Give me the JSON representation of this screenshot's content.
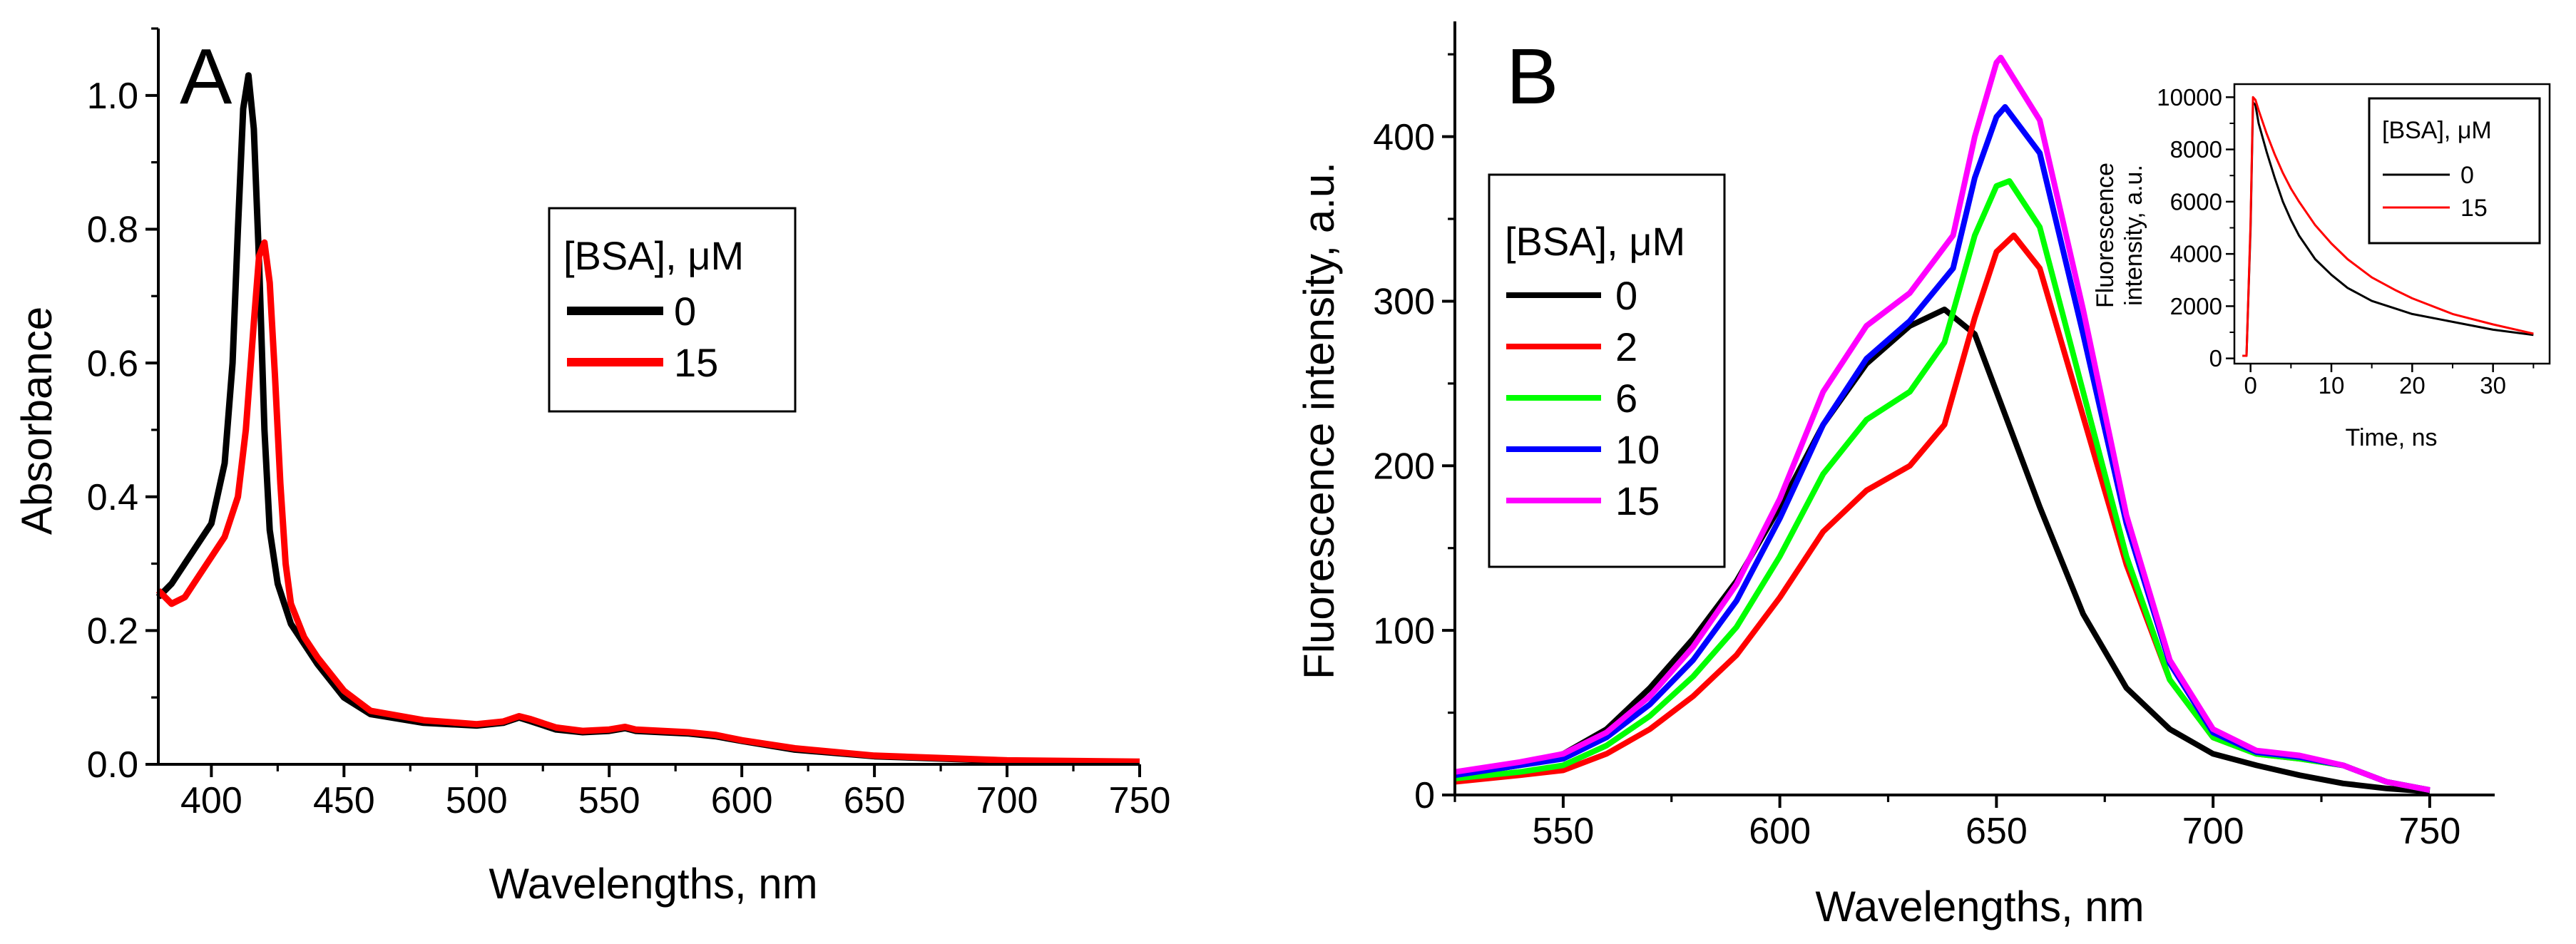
{
  "chart_data": [
    {
      "panel": "A",
      "type": "line",
      "xlabel": "Wavelengths, nm",
      "ylabel": "Absorbance",
      "xlim": [
        380,
        750
      ],
      "ylim": [
        0,
        1.1
      ],
      "xticks": [
        400,
        450,
        500,
        550,
        600,
        650,
        700,
        750
      ],
      "xtick_labels": [
        "400",
        "450",
        "500",
        "550",
        "600",
        "650",
        "700",
        "750"
      ],
      "yticks": [
        0,
        0.2,
        0.4,
        0.6,
        0.8,
        1.0
      ],
      "ytick_labels": [
        "0.0",
        "0.2",
        "0.4",
        "0.6",
        "0.8",
        "1.0"
      ],
      "legend": {
        "title": "[BSA], μM",
        "position": "upper-right"
      },
      "series": [
        {
          "name": "0",
          "color": "#000000",
          "x": [
            380,
            385,
            390,
            395,
            400,
            405,
            408,
            410,
            412,
            414,
            416,
            418,
            420,
            422,
            425,
            430,
            435,
            440,
            450,
            460,
            480,
            500,
            510,
            516,
            520,
            530,
            540,
            550,
            556,
            560,
            570,
            580,
            590,
            600,
            620,
            650,
            700,
            750
          ],
          "y": [
            0.25,
            0.27,
            0.3,
            0.33,
            0.36,
            0.45,
            0.6,
            0.8,
            0.98,
            1.03,
            0.95,
            0.75,
            0.5,
            0.35,
            0.27,
            0.21,
            0.18,
            0.15,
            0.1,
            0.075,
            0.062,
            0.058,
            0.062,
            0.07,
            0.065,
            0.052,
            0.048,
            0.05,
            0.054,
            0.05,
            0.048,
            0.046,
            0.042,
            0.035,
            0.022,
            0.012,
            0.005,
            0.003
          ]
        },
        {
          "name": "15",
          "color": "#ff0000",
          "x": [
            380,
            385,
            390,
            395,
            400,
            405,
            410,
            413,
            416,
            418,
            420,
            422,
            424,
            426,
            428,
            430,
            435,
            440,
            450,
            460,
            480,
            500,
            510,
            516,
            520,
            530,
            540,
            550,
            556,
            560,
            570,
            580,
            590,
            600,
            620,
            650,
            700,
            750
          ],
          "y": [
            0.26,
            0.24,
            0.25,
            0.28,
            0.31,
            0.34,
            0.4,
            0.5,
            0.66,
            0.76,
            0.78,
            0.72,
            0.58,
            0.42,
            0.3,
            0.24,
            0.19,
            0.16,
            0.11,
            0.08,
            0.066,
            0.06,
            0.064,
            0.072,
            0.068,
            0.055,
            0.05,
            0.052,
            0.056,
            0.052,
            0.05,
            0.048,
            0.044,
            0.036,
            0.024,
            0.013,
            0.006,
            0.004
          ]
        }
      ]
    },
    {
      "panel": "B",
      "type": "line",
      "xlabel": "Wavelengths, nm",
      "ylabel": "Fluorescence intensity, a.u.",
      "xlim": [
        525,
        765
      ],
      "ylim": [
        0,
        470
      ],
      "xticks": [
        550,
        600,
        650,
        700,
        750
      ],
      "xtick_labels": [
        "550",
        "600",
        "650",
        "700",
        "750"
      ],
      "yticks": [
        0,
        100,
        200,
        300,
        400
      ],
      "ytick_labels": [
        "0",
        "100",
        "200",
        "300",
        "400"
      ],
      "legend": {
        "title": "[BSA], μM",
        "position": "upper-left"
      },
      "series": [
        {
          "name": "0",
          "color": "#000000",
          "x": [
            525,
            540,
            550,
            560,
            570,
            580,
            590,
            600,
            610,
            620,
            630,
            638,
            645,
            650,
            660,
            670,
            680,
            690,
            700,
            710,
            720,
            730,
            740,
            750
          ],
          "y": [
            12,
            18,
            25,
            40,
            65,
            95,
            130,
            175,
            225,
            262,
            285,
            295,
            280,
            245,
            175,
            110,
            65,
            40,
            25,
            18,
            12,
            7,
            4,
            2
          ]
        },
        {
          "name": "2",
          "color": "#ff0000",
          "x": [
            525,
            540,
            550,
            560,
            570,
            580,
            590,
            600,
            610,
            620,
            630,
            638,
            645,
            650,
            654,
            660,
            670,
            680,
            690,
            700,
            710,
            720,
            730,
            740,
            750
          ],
          "y": [
            8,
            12,
            15,
            25,
            40,
            60,
            85,
            120,
            160,
            185,
            200,
            225,
            290,
            330,
            340,
            320,
            230,
            140,
            70,
            35,
            25,
            22,
            18,
            8,
            3
          ]
        },
        {
          "name": "6",
          "color": "#00ff00",
          "x": [
            525,
            540,
            550,
            560,
            570,
            580,
            590,
            600,
            610,
            620,
            630,
            638,
            645,
            650,
            653,
            660,
            670,
            680,
            690,
            700,
            710,
            720,
            730,
            740,
            750
          ],
          "y": [
            10,
            14,
            18,
            30,
            48,
            72,
            102,
            145,
            195,
            228,
            245,
            275,
            340,
            370,
            373,
            345,
            245,
            145,
            70,
            35,
            25,
            22,
            18,
            8,
            3
          ]
        },
        {
          "name": "10",
          "color": "#0000ff",
          "x": [
            525,
            540,
            550,
            560,
            570,
            580,
            590,
            600,
            610,
            620,
            630,
            640,
            645,
            650,
            652,
            660,
            670,
            680,
            690,
            700,
            710,
            720,
            730,
            740,
            750
          ],
          "y": [
            12,
            18,
            22,
            35,
            55,
            82,
            118,
            168,
            225,
            265,
            288,
            320,
            375,
            412,
            418,
            390,
            280,
            165,
            80,
            38,
            26,
            23,
            18,
            8,
            3
          ]
        },
        {
          "name": "15",
          "color": "#ff00ff",
          "x": [
            525,
            540,
            550,
            560,
            570,
            580,
            590,
            600,
            610,
            620,
            630,
            640,
            645,
            650,
            651,
            660,
            670,
            680,
            690,
            700,
            710,
            720,
            730,
            740,
            750
          ],
          "y": [
            14,
            20,
            25,
            38,
            60,
            90,
            128,
            180,
            245,
            285,
            305,
            340,
            400,
            445,
            448,
            410,
            295,
            170,
            82,
            40,
            27,
            24,
            18,
            8,
            3
          ]
        }
      ],
      "inset": {
        "type": "line",
        "xlabel": "Time, ns",
        "ylabel": "Fluorescence intensity, a.u.",
        "ylabel_lines": [
          "Fluorescence",
          "intensity, a.u."
        ],
        "xlim": [
          -2,
          37
        ],
        "ylim": [
          -200,
          10500
        ],
        "xticks": [
          0,
          10,
          20,
          30
        ],
        "xtick_labels": [
          "0",
          "10",
          "20",
          "30"
        ],
        "yticks": [
          0,
          2000,
          4000,
          6000,
          8000,
          10000
        ],
        "ytick_labels": [
          "0",
          "2000",
          "4000",
          "6000",
          "8000",
          "10000"
        ],
        "legend": {
          "title": "[BSA], μM",
          "position": "upper-right"
        },
        "series": [
          {
            "name": "0",
            "color": "#000000",
            "x": [
              -1,
              -0.5,
              0,
              0.3,
              0.6,
              1,
              2,
              3,
              4,
              5,
              6,
              8,
              10,
              12,
              15,
              18,
              20,
              25,
              30,
              35
            ],
            "y": [
              100,
              100,
              5000,
              9800,
              9700,
              9000,
              7900,
              6900,
              6000,
              5300,
              4700,
              3800,
              3200,
              2700,
              2200,
              1900,
              1700,
              1400,
              1100,
              900
            ]
          },
          {
            "name": "15",
            "color": "#ff0000",
            "x": [
              -1,
              -0.5,
              0,
              0.3,
              0.6,
              1,
              2,
              3,
              4,
              5,
              6,
              8,
              10,
              12,
              15,
              18,
              20,
              25,
              30,
              35
            ],
            "y": [
              100,
              100,
              5200,
              10000,
              9900,
              9500,
              8600,
              7800,
              7100,
              6500,
              6000,
              5100,
              4400,
              3800,
              3100,
              2600,
              2300,
              1700,
              1300,
              950
            ]
          }
        ]
      }
    }
  ]
}
